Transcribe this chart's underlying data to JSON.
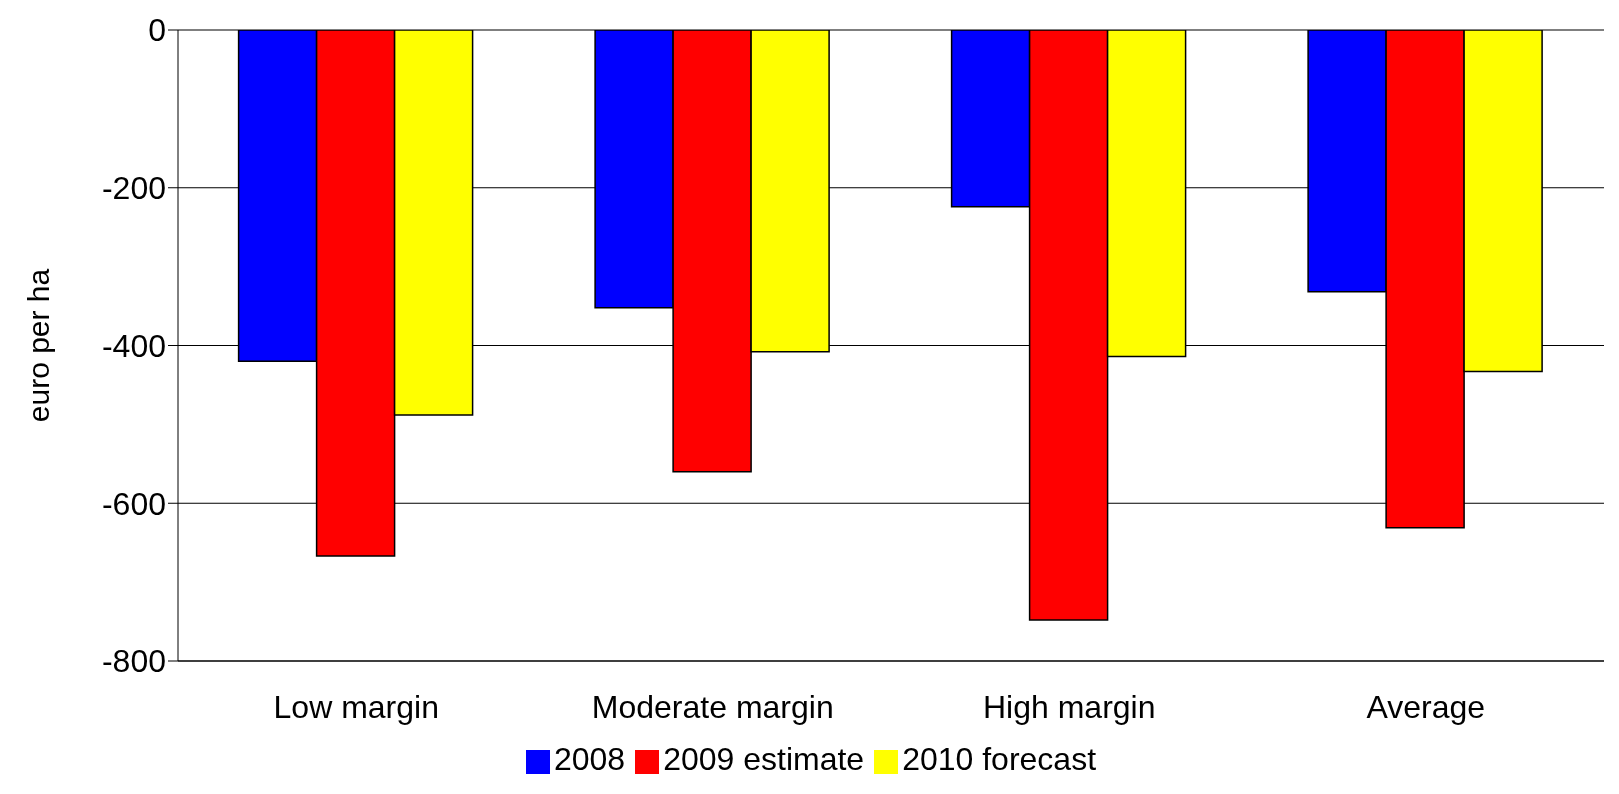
{
  "chart_data": {
    "type": "bar",
    "ylabel": "euro per ha",
    "categories": [
      "Low margin",
      "Moderate margin",
      "High margin",
      "Average"
    ],
    "series": [
      {
        "name": "2008",
        "color": "#0000ff",
        "values": [
          -420,
          -352,
          -224,
          -332
        ]
      },
      {
        "name": "2009 estimate",
        "color": "#ff0000",
        "values": [
          -667,
          -560,
          -748,
          -631
        ]
      },
      {
        "name": "2010 forecast",
        "color": "#ffff00",
        "values": [
          -488,
          -408,
          -414,
          -433
        ]
      }
    ],
    "ylim": [
      -800,
      0
    ],
    "yticks": [
      -800,
      -600,
      -400,
      -200,
      0
    ],
    "grid": "y",
    "legend": "bottom"
  }
}
